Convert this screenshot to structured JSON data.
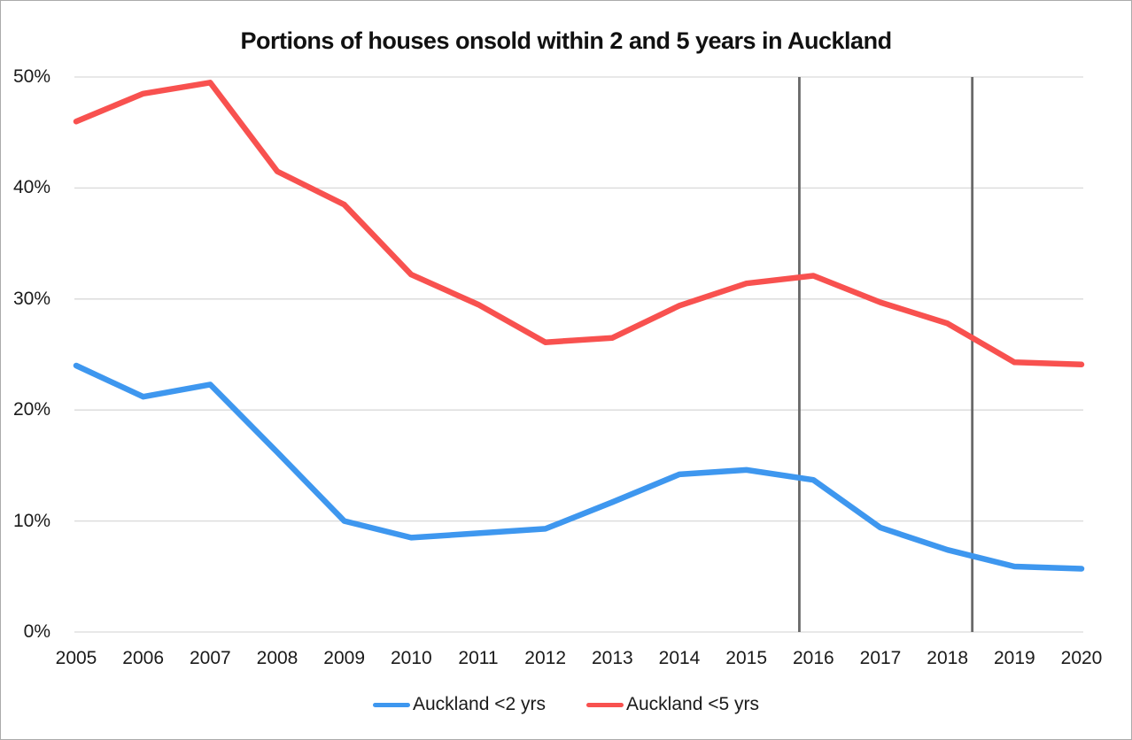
{
  "chart_data": {
    "type": "line",
    "title": "Portions of houses onsold within 2 and 5 years in Auckland",
    "x": [
      2005,
      2006,
      2007,
      2008,
      2009,
      2010,
      2011,
      2012,
      2013,
      2014,
      2015,
      2016,
      2017,
      2018,
      2019,
      2020
    ],
    "y_tick_labels": [
      "0%",
      "10%",
      "20%",
      "30%",
      "40%",
      "50%"
    ],
    "y_ticks": [
      0,
      10,
      20,
      30,
      40,
      50
    ],
    "ylim": [
      0,
      50
    ],
    "xlabel": "",
    "ylabel": "",
    "grid": "horizontal",
    "legend_position": "bottom",
    "series": [
      {
        "name": "Auckland <2 yrs",
        "color": "#3E97EF",
        "values": [
          24.0,
          21.2,
          22.3,
          16.2,
          10.0,
          8.5,
          8.9,
          9.3,
          11.7,
          14.2,
          14.6,
          13.7,
          9.4,
          7.4,
          5.9,
          5.7
        ]
      },
      {
        "name": "Auckland <5 yrs",
        "color": "#F8514F",
        "values": [
          46.0,
          48.5,
          49.5,
          41.5,
          38.5,
          32.2,
          29.5,
          26.1,
          26.5,
          29.4,
          31.4,
          32.1,
          29.7,
          27.8,
          24.3,
          24.1
        ]
      }
    ],
    "vertical_reference_lines": [
      {
        "x": 2015.79,
        "color": "#696969"
      },
      {
        "x": 2018.37,
        "color": "#696969"
      }
    ],
    "colors": {
      "gridline": "#D9D9D9",
      "axis_text": "#1a1a1a",
      "background": "#FFFFFF",
      "border": "#ABABAB"
    }
  }
}
